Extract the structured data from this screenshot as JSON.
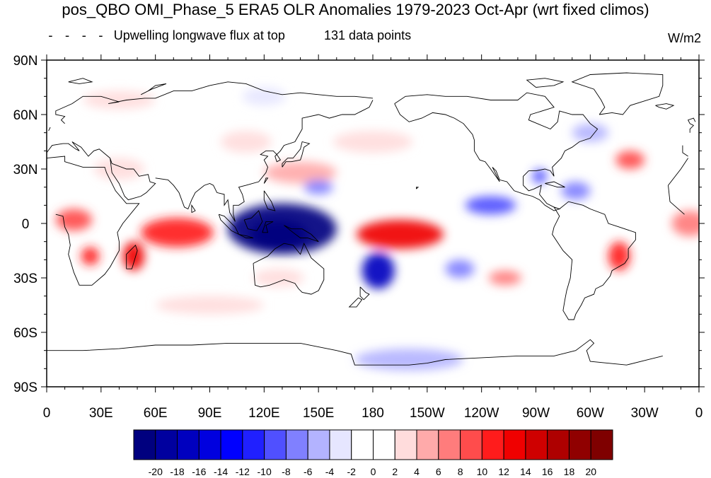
{
  "title": "pos_QBO OMI_Phase_5 ERA5 OLR Anomalies 1979-2023 Oct-Apr (wrt fixed climos)",
  "subtitle_left": "Upwelling longwave flux at top",
  "subtitle_center": "131 data points",
  "units": "W/m2",
  "map": {
    "projection": "cylindrical-equidistant",
    "lon_range": [
      0,
      360
    ],
    "lat_range": [
      -90,
      90
    ],
    "lat_ticks": [
      {
        "value": 90,
        "label": "90N"
      },
      {
        "value": 60,
        "label": "60N"
      },
      {
        "value": 30,
        "label": "30N"
      },
      {
        "value": 0,
        "label": "0"
      },
      {
        "value": -30,
        "label": "30S"
      },
      {
        "value": -60,
        "label": "60S"
      },
      {
        "value": -90,
        "label": "90S"
      }
    ],
    "lon_ticks": [
      {
        "value": 0,
        "label": "0"
      },
      {
        "value": 30,
        "label": "30E"
      },
      {
        "value": 60,
        "label": "60E"
      },
      {
        "value": 90,
        "label": "90E"
      },
      {
        "value": 120,
        "label": "120E"
      },
      {
        "value": 150,
        "label": "150E"
      },
      {
        "value": 180,
        "label": "180"
      },
      {
        "value": 210,
        "label": "150W"
      },
      {
        "value": 240,
        "label": "120W"
      },
      {
        "value": 270,
        "label": "90W"
      },
      {
        "value": 300,
        "label": "60W"
      },
      {
        "value": 330,
        "label": "30W"
      },
      {
        "value": 360,
        "label": "0"
      }
    ],
    "anomaly_features": [
      {
        "id": "maritime-continent-neg",
        "lon": 130,
        "lat": -3,
        "rlon": 30,
        "rlat": 14,
        "value": -20
      },
      {
        "id": "maritime-continent-core",
        "lon": 128,
        "lat": -6,
        "rlon": 16,
        "rlat": 8,
        "value": -24
      },
      {
        "id": "sw-pacific-neg",
        "lon": 183,
        "lat": -26,
        "rlon": 9,
        "rlat": 10,
        "value": -16
      },
      {
        "id": "central-pacific-pos",
        "lon": 195,
        "lat": -6,
        "rlon": 24,
        "rlat": 8,
        "value": 14
      },
      {
        "id": "indian-ocean-pos",
        "lon": 72,
        "lat": -5,
        "rlon": 20,
        "rlat": 8,
        "value": 12
      },
      {
        "id": "madagascar-pos",
        "lon": 48,
        "lat": -18,
        "rlon": 6,
        "rlat": 8,
        "value": 14
      },
      {
        "id": "south-africa-pos",
        "lon": 24,
        "lat": -18,
        "rlon": 5,
        "rlat": 5,
        "value": 12
      },
      {
        "id": "west-africa-pos",
        "lon": 15,
        "lat": 2,
        "rlon": 10,
        "rlat": 6,
        "value": 10
      },
      {
        "id": "south-america-pos",
        "lon": 316,
        "lat": -18,
        "rlon": 6,
        "rlat": 8,
        "value": 12
      },
      {
        "id": "atlantic-30n-pos",
        "lon": 322,
        "lat": 35,
        "rlon": 8,
        "rlat": 5,
        "value": 10
      },
      {
        "id": "east-atlantic-eq-pos",
        "lon": 355,
        "lat": 0,
        "rlon": 10,
        "rlat": 7,
        "value": 8
      },
      {
        "id": "east-pacific-neg",
        "lon": 245,
        "lat": 10,
        "rlon": 14,
        "rlat": 5,
        "value": -8
      },
      {
        "id": "gulf-of-mexico-neg",
        "lon": 272,
        "lat": 26,
        "rlon": 4,
        "rlat": 4,
        "value": -8
      },
      {
        "id": "caribbean-neg",
        "lon": 292,
        "lat": 18,
        "rlon": 8,
        "rlat": 5,
        "value": -6
      },
      {
        "id": "south-pacific-neg",
        "lon": 228,
        "lat": -25,
        "rlon": 8,
        "rlat": 5,
        "value": -6
      },
      {
        "id": "southeast-pacific-pos",
        "lon": 253,
        "lat": -30,
        "rlon": 9,
        "rlat": 4,
        "value": 8
      },
      {
        "id": "subtropical-nw-pacific-pos",
        "lon": 140,
        "lat": 28,
        "rlon": 20,
        "rlat": 6,
        "value": 6
      },
      {
        "id": "east-asia-pos",
        "lon": 110,
        "lat": 45,
        "rlon": 14,
        "rlat": 6,
        "value": 4
      },
      {
        "id": "australia-pos",
        "lon": 128,
        "lat": -30,
        "rlon": 14,
        "rlat": 5,
        "value": 4
      },
      {
        "id": "antarctic-neg",
        "lon": 200,
        "lat": -75,
        "rlon": 30,
        "rlat": 6,
        "value": -4
      },
      {
        "id": "north-pacific-pos",
        "lon": 180,
        "lat": 45,
        "rlon": 22,
        "rlat": 6,
        "value": 4
      },
      {
        "id": "sahara-pos",
        "lon": 40,
        "lat": 30,
        "rlon": 14,
        "rlat": 6,
        "value": 4
      },
      {
        "id": "arctic-pos",
        "lon": 40,
        "lat": 68,
        "rlon": 20,
        "rlat": 5,
        "value": 3
      },
      {
        "id": "siberia-neg",
        "lon": 120,
        "lat": 70,
        "rlon": 12,
        "rlat": 5,
        "value": -3
      },
      {
        "id": "southern-ocean-pos",
        "lon": 90,
        "lat": -45,
        "rlon": 30,
        "rlat": 5,
        "value": 3
      },
      {
        "id": "northwest-pacific-neg",
        "lon": 150,
        "lat": 20,
        "rlon": 8,
        "rlat": 4,
        "value": -6
      },
      {
        "id": "north-atlantic-neg",
        "lon": 300,
        "lat": 50,
        "rlon": 10,
        "rlat": 5,
        "value": -4
      }
    ]
  },
  "legend": {
    "line_style": "dashed",
    "line_label": "Upwelling longwave flux at top"
  },
  "colorbar": {
    "levels": [
      -20,
      -18,
      -16,
      -14,
      -12,
      -10,
      -8,
      -6,
      -4,
      -2,
      0,
      2,
      4,
      6,
      8,
      10,
      12,
      14,
      16,
      18,
      20
    ],
    "colors": [
      "#00007f",
      "#00009f",
      "#0000bf",
      "#0000df",
      "#0000ff",
      "#2020ff",
      "#5050ff",
      "#8080ff",
      "#b3b3ff",
      "#e6e6ff",
      "#ffffff",
      "#ffffff",
      "#ffdcdc",
      "#ffaaaa",
      "#ff7c7c",
      "#ff4c4c",
      "#ff1c1c",
      "#f00000",
      "#cf0000",
      "#ae0000",
      "#900000",
      "#7f0000"
    ]
  },
  "chart_data": {
    "type": "heatmap",
    "title": "pos_QBO OMI_Phase_5 ERA5 OLR Anomalies 1979-2023 Oct-Apr (wrt fixed climos)",
    "units": "W/m2",
    "xlim": [
      0,
      360
    ],
    "ylim": [
      -90,
      90
    ],
    "value_range": [
      -20,
      20
    ],
    "n_points": 131
  }
}
